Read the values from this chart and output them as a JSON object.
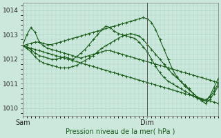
{
  "xlabel": "Pression niveau de la mer( hPa )",
  "ylim": [
    1009.7,
    1014.3
  ],
  "xlim": [
    0,
    47
  ],
  "yticks": [
    1010,
    1011,
    1012,
    1013,
    1014
  ],
  "xtick_labels": [
    "Sam",
    "Dim"
  ],
  "xtick_positions": [
    0,
    30
  ],
  "vline_x": 30,
  "bg_color": "#cce8dc",
  "grid_color": "#aad4c4",
  "line_color": "#1a5c1a",
  "lines": [
    {
      "x": [
        0,
        1,
        2,
        3,
        4,
        5,
        6,
        7,
        8,
        9,
        10,
        11,
        12,
        13,
        14,
        15,
        16,
        17,
        18,
        19,
        20,
        21,
        22,
        23,
        24,
        25,
        26,
        27,
        28,
        29,
        30,
        31,
        32,
        33,
        34,
        35,
        36,
        37,
        38,
        39,
        40,
        41,
        42,
        43,
        44,
        45,
        46,
        47
      ],
      "y": [
        1012.55,
        1013.0,
        1013.3,
        1013.1,
        1012.7,
        1012.55,
        1012.45,
        1012.4,
        1012.35,
        1012.3,
        1012.25,
        1012.2,
        1012.15,
        1012.1,
        1012.05,
        1012.1,
        1012.15,
        1012.2,
        1012.25,
        1012.3,
        1012.35,
        1012.35,
        1012.3,
        1012.25,
        1012.2,
        1012.15,
        1012.1,
        1012.05,
        1012.0,
        1011.95,
        1011.9,
        1011.85,
        1011.8,
        1011.75,
        1011.7,
        1011.65,
        1011.6,
        1011.55,
        1011.5,
        1011.45,
        1011.4,
        1011.35,
        1011.3,
        1011.25,
        1011.2,
        1011.15,
        1011.1,
        1011.05
      ]
    },
    {
      "x": [
        0,
        1,
        2,
        3,
        4,
        5,
        6,
        7,
        8,
        9,
        10,
        11,
        12,
        13,
        14,
        15,
        16,
        17,
        18,
        19,
        20,
        21,
        22,
        23,
        24,
        25,
        26,
        27,
        28,
        29,
        30,
        31,
        32,
        33,
        34,
        35,
        36,
        37,
        38,
        39,
        40,
        41,
        42,
        43,
        44,
        45,
        46,
        47
      ],
      "y": [
        1012.55,
        1012.5,
        1012.4,
        1012.25,
        1012.15,
        1012.1,
        1012.05,
        1012.0,
        1012.0,
        1012.05,
        1012.1,
        1012.05,
        1012.0,
        1012.1,
        1012.25,
        1012.4,
        1012.6,
        1012.8,
        1013.0,
        1013.2,
        1013.35,
        1013.3,
        1013.15,
        1013.05,
        1013.0,
        1012.95,
        1012.9,
        1012.85,
        1012.7,
        1012.5,
        1012.3,
        1012.0,
        1011.7,
        1011.45,
        1011.25,
        1011.1,
        1011.0,
        1010.9,
        1010.8,
        1010.7,
        1010.6,
        1010.5,
        1010.4,
        1010.35,
        1010.3,
        1010.45,
        1010.7,
        1011.0
      ]
    },
    {
      "x": [
        0,
        1,
        2,
        3,
        4,
        5,
        6,
        7,
        8,
        9,
        10,
        11,
        12,
        13,
        14,
        15,
        16,
        17,
        18,
        19,
        20,
        21,
        22,
        23,
        24,
        25,
        26,
        27,
        28,
        29,
        30,
        31,
        32,
        33,
        34,
        35,
        36,
        37,
        38,
        39,
        40,
        41,
        42,
        43,
        44,
        45,
        46,
        47
      ],
      "y": [
        1012.55,
        1012.45,
        1012.3,
        1012.1,
        1011.95,
        1011.85,
        1011.8,
        1011.75,
        1011.7,
        1011.65,
        1011.65,
        1011.65,
        1011.7,
        1011.75,
        1011.85,
        1011.95,
        1012.05,
        1012.15,
        1012.3,
        1012.45,
        1012.55,
        1012.65,
        1012.75,
        1012.85,
        1012.95,
        1013.0,
        1013.05,
        1013.0,
        1012.95,
        1012.8,
        1012.6,
        1012.4,
        1012.2,
        1012.0,
        1011.8,
        1011.6,
        1011.4,
        1011.25,
        1011.1,
        1010.95,
        1010.8,
        1010.6,
        1010.45,
        1010.3,
        1010.2,
        1010.35,
        1010.6,
        1010.9
      ]
    },
    {
      "x": [
        0,
        1,
        2,
        3,
        4,
        5,
        6,
        7,
        8,
        9,
        10,
        11,
        12,
        13,
        14,
        15,
        16,
        17,
        18,
        19,
        20,
        21,
        22,
        23,
        24,
        25,
        26,
        27,
        28,
        29,
        30,
        31,
        32,
        33,
        34,
        35,
        36,
        37,
        38,
        39,
        40,
        41,
        42,
        43,
        44,
        45,
        46,
        47
      ],
      "y": [
        1012.55,
        1012.5,
        1012.45,
        1012.4,
        1012.35,
        1012.3,
        1012.25,
        1012.2,
        1012.15,
        1012.1,
        1012.05,
        1012.0,
        1011.95,
        1011.9,
        1011.85,
        1011.8,
        1011.75,
        1011.7,
        1011.65,
        1011.6,
        1011.55,
        1011.5,
        1011.45,
        1011.4,
        1011.35,
        1011.3,
        1011.25,
        1011.2,
        1011.15,
        1011.1,
        1011.05,
        1011.0,
        1010.95,
        1010.9,
        1010.85,
        1010.8,
        1010.75,
        1010.7,
        1010.65,
        1010.6,
        1010.55,
        1010.5,
        1010.45,
        1010.4,
        1010.35,
        1010.3,
        1010.25,
        1010.2
      ]
    },
    {
      "x": [
        0,
        1,
        2,
        3,
        4,
        5,
        6,
        7,
        8,
        9,
        10,
        11,
        12,
        13,
        14,
        15,
        16,
        17,
        18,
        19,
        20,
        21,
        22,
        23,
        24,
        25,
        26,
        27,
        28,
        29,
        30,
        31,
        32,
        33,
        34,
        35,
        36,
        37,
        38,
        39,
        40,
        41,
        42,
        43,
        44,
        45,
        46,
        47
      ],
      "y": [
        1012.55,
        1012.6,
        1012.65,
        1012.7,
        1012.7,
        1012.65,
        1012.6,
        1012.6,
        1012.65,
        1012.7,
        1012.75,
        1012.8,
        1012.85,
        1012.9,
        1012.95,
        1013.0,
        1013.05,
        1013.1,
        1013.15,
        1013.2,
        1013.25,
        1013.3,
        1013.35,
        1013.4,
        1013.45,
        1013.5,
        1013.55,
        1013.6,
        1013.65,
        1013.7,
        1013.65,
        1013.5,
        1013.2,
        1012.8,
        1012.4,
        1012.0,
        1011.6,
        1011.3,
        1011.1,
        1010.9,
        1010.75,
        1010.6,
        1010.45,
        1010.35,
        1010.3,
        1010.5,
        1010.85,
        1011.2
      ]
    }
  ]
}
